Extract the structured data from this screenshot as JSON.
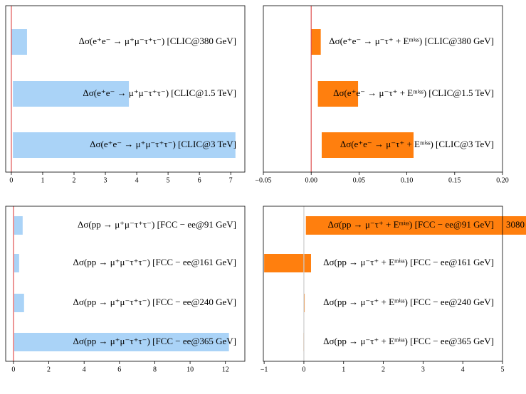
{
  "chart_data": [
    {
      "type": "bar",
      "orientation": "horizontal",
      "color": "#aad3f7",
      "categories": [
        "Δσ(e⁺e⁻ → μ⁺μ⁻τ⁺τ⁻)  [CLIC@380 GeV]",
        "Δσ(e⁺e⁻ → μ⁺μ⁻τ⁺τ⁻)  [CLIC@1.5 TeV]",
        "Δσ(e⁺e⁻ → μ⁺μ⁻τ⁺τ⁻)  [CLIC@3 TeV]"
      ],
      "low": [
        0,
        0.05,
        0.05
      ],
      "values": [
        0.5,
        3.75,
        7.15
      ],
      "xlim": [
        -0.18,
        7.45
      ],
      "xticks": [
        0,
        1,
        2,
        3,
        4,
        5,
        6,
        7
      ],
      "refline": 0,
      "refline_color": "#e05050"
    },
    {
      "type": "bar",
      "orientation": "horizontal",
      "color": "#ff7f0e",
      "categories": [
        "Δσ(e⁺e⁻ → μ⁻τ⁺ + Eᵐⁱˢˢ)  [CLIC@380 GeV]",
        "Δσ(e⁺e⁻ → μ⁻τ⁺ + Eᵐⁱˢˢ)  [CLIC@1.5 TeV]",
        "Δσ(e⁺e⁻ → μ⁻τ⁺ + Eᵐⁱˢˢ)  [CLIC@3 TeV]"
      ],
      "low": [
        0,
        0.007,
        0.011
      ],
      "values": [
        0.01,
        0.049,
        0.107
      ],
      "xlim": [
        -0.05,
        0.2
      ],
      "xticks": [
        {
          "value": -0.05,
          "label": "−0.05"
        },
        {
          "value": 0,
          "label": "0.00"
        },
        {
          "value": 0.05,
          "label": "0.05"
        },
        {
          "value": 0.1,
          "label": "0.10"
        },
        {
          "value": 0.15,
          "label": "0.15"
        },
        {
          "value": 0.2,
          "label": "0.20"
        }
      ],
      "refline": 0,
      "refline_color": "#e05050"
    },
    {
      "type": "bar",
      "orientation": "horizontal",
      "color": "#aad3f7",
      "categories": [
        "Δσ(pp → μ⁺μ⁻τ⁺τ⁻)  [FCC − ee@91 GeV]",
        "Δσ(pp → μ⁺μ⁻τ⁺τ⁻)  [FCC − ee@161 GeV]",
        "Δσ(pp → μ⁺μ⁻τ⁺τ⁻)  [FCC − ee@240 GeV]",
        "Δσ(pp → μ⁺μ⁻τ⁺τ⁻)  [FCC − ee@365 GeV]"
      ],
      "low": [
        0.04,
        0.04,
        0.04,
        0.04
      ],
      "values": [
        0.52,
        0.32,
        0.6,
        12.2
      ],
      "xlim": [
        -0.44,
        13.1
      ],
      "xticks": [
        0,
        2,
        4,
        6,
        8,
        10,
        12
      ],
      "refline": 0,
      "refline_color": "#e05050"
    },
    {
      "type": "bar",
      "orientation": "horizontal",
      "color": "#ff7f0e",
      "categories": [
        "Δσ(pp → μ⁻τ⁺ + Eᵐⁱˢˢ)  [FCC − ee@91 GeV]",
        "Δσ(pp → μ⁻τ⁺ + Eᵐⁱˢˢ)  [FCC − ee@161 GeV]",
        "Δσ(pp → μ⁻τ⁺ + Eᵐⁱˢˢ)  [FCC − ee@240 GeV]",
        "Δσ(pp → μ⁻τ⁺ + Eᵐⁱˢˢ)  [FCC − ee@365 GeV]"
      ],
      "low": [
        0.05,
        -1.0,
        -0.005,
        -0.01
      ],
      "values": [
        3080,
        0.18,
        0.02,
        0.01
      ],
      "value_labels": [
        "3080",
        null,
        null,
        null
      ],
      "xlim": [
        -1.02,
        5
      ],
      "xticks": [
        {
          "value": -1,
          "label": "−1"
        },
        0,
        1,
        2,
        3,
        4,
        5
      ],
      "refline": 0,
      "refline_color": "#cccccc"
    }
  ]
}
